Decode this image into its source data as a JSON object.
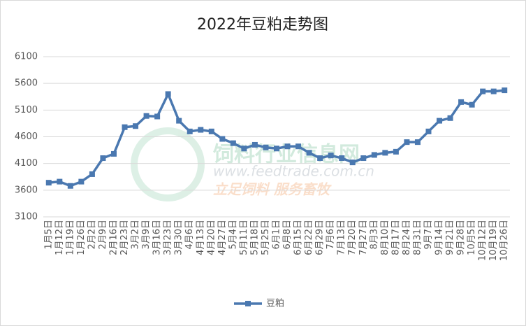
{
  "chart_data": {
    "type": "line",
    "title": "2022年豆粕走势图",
    "categories": [
      "1月5日",
      "1月12日",
      "1月19日",
      "1月26日",
      "2月2日",
      "2月9日",
      "2月16日",
      "2月23日",
      "3月2日",
      "3月9日",
      "3月16日",
      "3月23日",
      "3月30日",
      "4月6日",
      "4月13日",
      "4月20日",
      "4月27日",
      "5月4日",
      "5月11日",
      "5月18日",
      "5月25日",
      "6月1日",
      "6月8日",
      "6月15日",
      "6月22日",
      "6月29日",
      "7月6日",
      "7月13日",
      "7月20日",
      "7月27日",
      "8月3日",
      "8月10日",
      "8月17日",
      "8月24日",
      "8月31日",
      "9月7日",
      "9月14日",
      "9月21日",
      "9月28日",
      "10月5日",
      "10月12日",
      "10月19日",
      "10月26日"
    ],
    "series": [
      {
        "name": "豆粕",
        "color": "#4a78b0",
        "values": [
          3740,
          3760,
          3680,
          3760,
          3900,
          4200,
          4280,
          4780,
          4800,
          4990,
          4980,
          5400,
          4900,
          4700,
          4730,
          4700,
          4560,
          4480,
          4380,
          4450,
          4400,
          4380,
          4420,
          4420,
          4300,
          4200,
          4250,
          4200,
          4120,
          4200,
          4260,
          4300,
          4320,
          4500,
          4500,
          4700,
          4900,
          4950,
          5250,
          5200,
          5450,
          5450,
          5470
        ]
      }
    ],
    "ylim": [
      3100,
      6100
    ],
    "yticks": [
      3100,
      3600,
      4100,
      4600,
      5100,
      5600,
      6100
    ],
    "grid": true,
    "legend": "bottom",
    "watermark": {
      "name": "饲料行业信息网",
      "url": "www.feedtrade.com.cn",
      "slogan": "立足饲料  服务畜牧"
    }
  }
}
